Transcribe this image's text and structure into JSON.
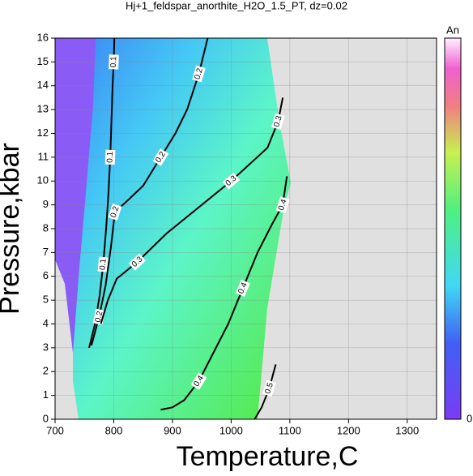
{
  "chart_data": {
    "type": "contour",
    "title": "Hj+1_feldspar_anorthite_H2O_1.5_PT, dz=0.02",
    "x_label": "Temperature,C",
    "y_label": "Pressure,kbar",
    "xlim": [
      700,
      1350
    ],
    "ylim": [
      0,
      16
    ],
    "xticks": [
      700,
      800,
      900,
      1000,
      1100,
      1200,
      1300
    ],
    "yticks": [
      0,
      1,
      2,
      3,
      4,
      5,
      6,
      7,
      8,
      9,
      10,
      11,
      12,
      13,
      14,
      15,
      16
    ],
    "grid": true,
    "colorbar_label": "An",
    "colorbar_ticks": [
      0
    ],
    "contours": [
      {
        "level": 0.1,
        "x": [
          801,
          800,
          798,
          796,
          794,
          791,
          787,
          782,
          776,
          768,
          758
        ],
        "y": [
          16,
          15,
          14,
          12.5,
          11,
          9.5,
          8,
          6.5,
          5.2,
          4,
          3
        ]
      },
      {
        "level": 0.2,
        "x": [
          960,
          945,
          925,
          905,
          880,
          850,
          820,
          802,
          795,
          786,
          775,
          762
        ],
        "y": [
          16,
          14.5,
          13,
          12,
          11,
          9.8,
          9.1,
          8.7,
          7.2,
          5.6,
          4.3,
          3.1
        ]
      },
      {
        "level": 0.3,
        "x": [
          1088,
          1080,
          1062,
          1040,
          1000,
          950,
          890,
          840,
          805,
          790,
          778
        ],
        "y": [
          13.5,
          12.5,
          11.4,
          10.9,
          10,
          9,
          7.8,
          6.6,
          5.9,
          5,
          4
        ]
      },
      {
        "level": 0.4,
        "x": [
          1095,
          1088,
          1070,
          1045,
          1020,
          995,
          970,
          945,
          920,
          900,
          880
        ],
        "y": [
          10.2,
          9,
          8.2,
          7,
          5.5,
          4,
          2.8,
          1.6,
          0.8,
          0.5,
          0.4
        ]
      },
      {
        "level": 0.5,
        "x": [
          1076,
          1065,
          1052,
          1040
        ],
        "y": [
          2.3,
          1.3,
          0.5,
          0
        ]
      }
    ]
  }
}
